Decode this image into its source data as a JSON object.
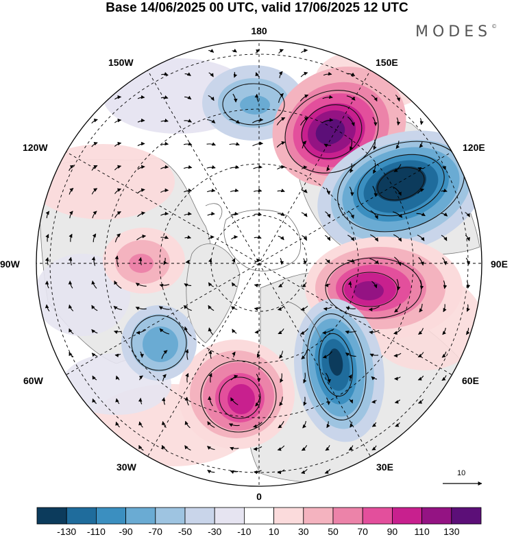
{
  "title": "Base 14/06/2025 00 UTC, valid 17/06/2025 12 UTC",
  "brand": "MODES",
  "brand_mark": "©",
  "longitudes": {
    "n180": "180",
    "w150": "150W",
    "e150": "150E",
    "w120": "120W",
    "e120": "120E",
    "w90": "90W",
    "e90": "90E",
    "w60": "60W",
    "e60": "60E",
    "w30": "30W",
    "e30": "30E",
    "s0": "0"
  },
  "reference_vector": {
    "label": "10",
    "icon": "arrow-right-icon"
  },
  "colorbar": {
    "colors": [
      "#0c3b5c",
      "#1f6c9c",
      "#3b8fc0",
      "#6aabd3",
      "#9ec4e1",
      "#c9d5ea",
      "#e6e4f1",
      "#ffffff",
      "#fbdbdc",
      "#f4b3bf",
      "#ec83a9",
      "#e34f9c",
      "#c8208e",
      "#941383",
      "#5c0f78"
    ],
    "ticks": [
      "-130",
      "-110",
      "-90",
      "-70",
      "-50",
      "-30",
      "-10",
      "10",
      "30",
      "50",
      "70",
      "90",
      "110",
      "130"
    ]
  },
  "anomalies": [
    {
      "name": "blob-150e-positive",
      "value": 130
    },
    {
      "name": "blob-120e-negative",
      "value": -130
    },
    {
      "name": "blob-90e-positive",
      "value": 110
    },
    {
      "name": "blob-30e-negative",
      "value": -110
    },
    {
      "name": "blob-30w-positive",
      "value": 90
    },
    {
      "name": "blob-60w-negative",
      "value": -70
    },
    {
      "name": "blob-180-negative",
      "value": -50
    },
    {
      "name": "blob-90w-positive",
      "value": 50
    },
    {
      "name": "blob-120w-positive",
      "value": 30
    }
  ]
}
